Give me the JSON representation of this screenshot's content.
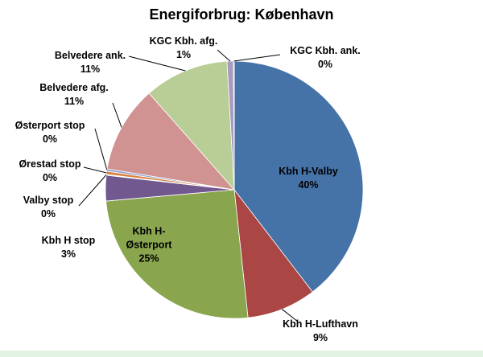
{
  "chart_data": {
    "type": "pie",
    "title": "Energiforbrug: København",
    "categories": [
      "Kbh H-Valby",
      "Kbh H-Lufthavn",
      "Kbh H-Østerport",
      "Kbh H stop",
      "Valby stop",
      "Ørestad stop",
      "Østerport stop",
      "Belvedere afg.",
      "Belvedere ank.",
      "KGC Kbh. afg.",
      "KGC Kbh. ank."
    ],
    "values": [
      39.6,
      8.7,
      25.3,
      3.2,
      0.1,
      0.4,
      0.3,
      10.9,
      10.6,
      0.8,
      0.1
    ],
    "value_labels": [
      "40%",
      "9%",
      "25%",
      "3%",
      "0%",
      "0%",
      "0%",
      "11%",
      "11%",
      "1%",
      "0%"
    ],
    "colors": [
      "#4572a7",
      "#aa4643",
      "#89a54e",
      "#71588f",
      "#4198af",
      "#db843d",
      "#93a9cf",
      "#d19392",
      "#b9cd96",
      "#a99bbd",
      "#91c3d5"
    ]
  }
}
